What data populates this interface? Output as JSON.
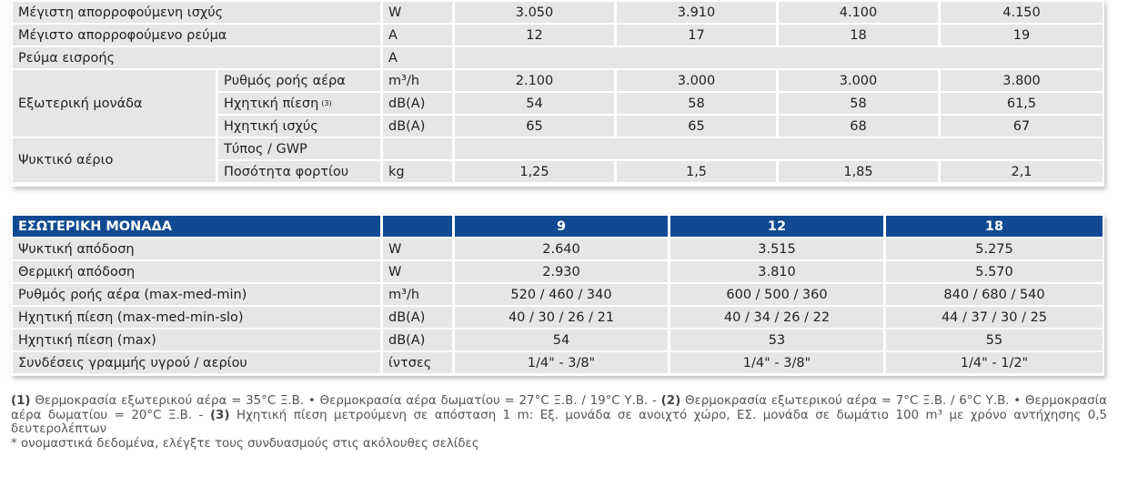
{
  "top_table": {
    "rows": [
      {
        "label": "Μέγιστη απορροφούμενη ισχύς",
        "unit": "W",
        "values": [
          "3.050",
          "3.910",
          "4.100",
          "4.150"
        ]
      },
      {
        "label": "Μέγιστο απορροφούμενο ρεύμα",
        "unit": "A",
        "values": [
          "12",
          "17",
          "18",
          "19"
        ]
      },
      {
        "label": "Ρεύμα εισροής",
        "unit": "A"
      },
      {
        "group": "Εξωτερική μονάδα",
        "items": [
          {
            "label": "Ρυθμός ροής αέρα",
            "unit": "m³/h",
            "values": [
              "2.100",
              "3.000",
              "3.000",
              "3.800"
            ]
          },
          {
            "label": "Ηχητική πίεση",
            "note": "(3)",
            "unit": "dB(A)",
            "values": [
              "54",
              "58",
              "58",
              "61,5"
            ]
          },
          {
            "label": "Ηχητική ισχύς",
            "unit": "dB(A)",
            "values": [
              "65",
              "65",
              "68",
              "67"
            ]
          }
        ]
      },
      {
        "group": "Ψυκτικό αέριο",
        "items": [
          {
            "label": "Τύπος / GWP"
          },
          {
            "label": "Ποσότητα φορτίου",
            "unit": "kg",
            "values": [
              "1,25",
              "1,5",
              "1,85",
              "2,1"
            ]
          }
        ]
      }
    ]
  },
  "indoor_table": {
    "title": "ΕΣΩΤΕΡΙΚΗ ΜΟΝΑΔΑ",
    "columns": [
      "9",
      "12",
      "18"
    ],
    "rows": [
      {
        "label": "Ψυκτική απόδοση",
        "unit": "W",
        "values": [
          "2.640",
          "3.515",
          "5.275"
        ]
      },
      {
        "label": "Θερμική απόδοση",
        "unit": "W",
        "values": [
          "2.930",
          "3.810",
          "5.570"
        ]
      },
      {
        "label": "Ρυθμός ροής αέρα (max-med-min)",
        "unit": "m³/h",
        "values": [
          "520 / 460 / 340",
          "600 / 500 / 360",
          "840 / 680 / 540"
        ]
      },
      {
        "label": "Ηχητική πίεση (max-med-min-slo)",
        "unit": "dB(A)",
        "values": [
          "40 / 30 / 26 / 21",
          "40 / 34 / 26 / 22",
          "44 / 37 / 30 / 25"
        ]
      },
      {
        "label": "Ηχητική πίεση (max)",
        "unit": "dB(A)",
        "values": [
          "54",
          "53",
          "55"
        ]
      },
      {
        "label": "Συνδέσεις γραμμής υγρού / αερίου",
        "unit": "ίντσες",
        "values": [
          "1/4\" - 3/8\"",
          "1/4\" - 3/8\"",
          "1/4\" - 1/2\""
        ]
      }
    ]
  },
  "notes": {
    "items": [
      {
        "marker": "(1)",
        "text": "Θερμοκρασία εξωτερικού αέρα = 35°C Ξ.Β. • Θερμοκρασία αέρα δωματίου = 27°C Ξ.Β. / 19°C Υ.Β. -"
      },
      {
        "marker": "(2)",
        "text": "Θερμοκρασία εξωτερικού αέρα = 7°C Ξ.Β. / 6°C Υ.Β. • Θερμοκρασία αέρα δωματίου = 20°C Ξ.Β. -"
      },
      {
        "marker": "(3)",
        "text": "Ηχητική πίεση μετρούμενη σε απόσταση 1 m: Εξ. μονάδα σε ανοιχτό χώρο, ΕΣ. μονάδα σε δωμάτιο 100 m³ με χρόνο αντήχησης 0,5 δευτερολέπτων"
      }
    ],
    "footnote": "* ονομαστικά δεδομένα, ελέγξτε τους συνδυασμούς στις ακόλουθες σελίδες"
  }
}
